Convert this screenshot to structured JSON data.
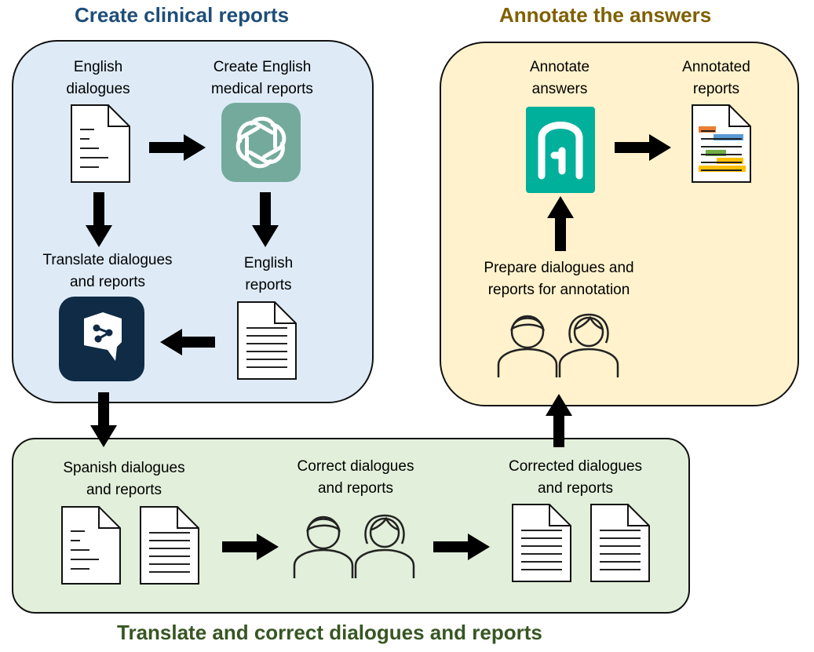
{
  "sections": {
    "create": {
      "title": "Create clinical reports",
      "color": "#1f4e79"
    },
    "annotate": {
      "title": "Annotate the answers",
      "color": "#7f6000"
    },
    "translate": {
      "title": "Translate and correct dialogues and reports",
      "color": "#375623"
    }
  },
  "nodes": {
    "english_dialogues": {
      "line1": "English",
      "line2": "dialogues"
    },
    "create_reports": {
      "line1": "Create English",
      "line2": "medical reports"
    },
    "translate_step": {
      "line1": "Translate dialogues",
      "line2": "and reports"
    },
    "english_reports": {
      "line1": "English",
      "line2": "reports"
    },
    "annotate_answers": {
      "line1": "Annotate",
      "line2": "answers"
    },
    "annotated_reports": {
      "line1": "Annotated",
      "line2": "reports"
    },
    "prepare": {
      "line1": "Prepare dialogues and",
      "line2": "reports for annotation"
    },
    "spanish": {
      "line1": "Spanish dialogues",
      "line2": "and reports"
    },
    "correct": {
      "line1": "Correct dialogues",
      "line2": "and reports"
    },
    "corrected": {
      "line1": "Corrected dialogues",
      "line2": "and reports"
    }
  },
  "icons": {
    "chatgpt": "openai-logo-icon",
    "deepl": "deepl-logo-icon",
    "annotation_tool": "annotation-tool-logo-icon",
    "people": "two-people-icon",
    "document": "document-icon"
  },
  "colors": {
    "create_panel_bg": "#deebf7",
    "annotate_panel_bg": "#fff2cc",
    "translate_panel_bg": "#e2efda",
    "chatgpt_green": "#74aa9c",
    "deepl_navy": "#0f2b46",
    "annotation_teal": "#00b09b"
  }
}
